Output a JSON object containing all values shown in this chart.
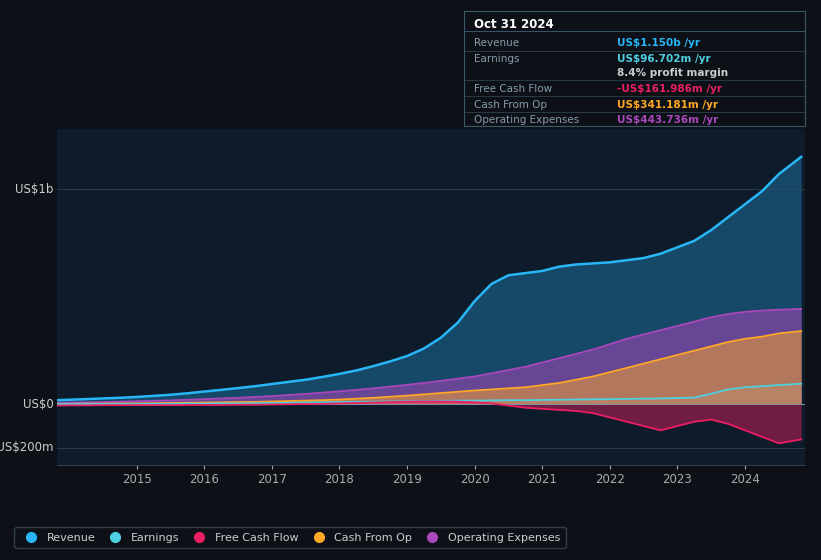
{
  "bg_color": "#0d1117",
  "plot_bg_color": "#0d1b2a",
  "ylabel_top": "US$1b",
  "ylabel_zero": "US$0",
  "ylabel_neg": "-US$200m",
  "ylim": [
    -280000000,
    1280000000
  ],
  "legend_labels": [
    "Revenue",
    "Earnings",
    "Free Cash Flow",
    "Cash From Op",
    "Operating Expenses"
  ],
  "legend_colors": [
    "#29b6f6",
    "#4dd0e1",
    "#e91e63",
    "#ffa726",
    "#ab47bc"
  ],
  "info_title": "Oct 31 2024",
  "info_rows": [
    {
      "label": "Revenue",
      "value": "US$1.150b /yr",
      "color": "#29b6f6"
    },
    {
      "label": "Earnings",
      "value": "US$96.702m /yr",
      "color": "#4dd0e1"
    },
    {
      "label": "",
      "value": "8.4% profit margin",
      "color": "#cccccc"
    },
    {
      "label": "Free Cash Flow",
      "value": "-US$161.986m /yr",
      "color": "#e91e63"
    },
    {
      "label": "Cash From Op",
      "value": "US$341.181m /yr",
      "color": "#ffa726"
    },
    {
      "label": "Operating Expenses",
      "value": "US$443.736m /yr",
      "color": "#ab47bc"
    }
  ],
  "years": [
    2013.83,
    2014.0,
    2014.25,
    2014.5,
    2014.75,
    2015.0,
    2015.25,
    2015.5,
    2015.75,
    2016.0,
    2016.25,
    2016.5,
    2016.75,
    2017.0,
    2017.25,
    2017.5,
    2017.75,
    2018.0,
    2018.25,
    2018.5,
    2018.75,
    2019.0,
    2019.25,
    2019.5,
    2019.75,
    2020.0,
    2020.25,
    2020.5,
    2020.75,
    2021.0,
    2021.25,
    2021.5,
    2021.75,
    2022.0,
    2022.25,
    2022.5,
    2022.75,
    2023.0,
    2023.25,
    2023.5,
    2023.75,
    2024.0,
    2024.25,
    2024.5,
    2024.83
  ],
  "revenue": [
    20000000.0,
    22000000.0,
    25000000.0,
    28000000.0,
    31000000.0,
    35000000.0,
    40000000.0,
    45000000.0,
    52000000.0,
    60000000.0,
    68000000.0,
    76000000.0,
    85000000.0,
    95000000.0,
    105000000.0,
    115000000.0,
    128000000.0,
    142000000.0,
    158000000.0,
    178000000.0,
    200000000.0,
    225000000.0,
    260000000.0,
    310000000.0,
    380000000.0,
    480000000.0,
    560000000.0,
    600000000.0,
    610000000.0,
    620000000.0,
    640000000.0,
    650000000.0,
    655000000.0,
    660000000.0,
    670000000.0,
    680000000.0,
    700000000.0,
    730000000.0,
    760000000.0,
    810000000.0,
    870000000.0,
    930000000.0,
    990000000.0,
    1070000000.0,
    1150000000.0
  ],
  "earnings": [
    2000000.0,
    2000000.0,
    2000000.0,
    2000000.0,
    2000000.0,
    2000000.0,
    3000000.0,
    3000000.0,
    4000000.0,
    4000000.0,
    5000000.0,
    5000000.0,
    6000000.0,
    7000000.0,
    8000000.0,
    9000000.0,
    10000000.0,
    11000000.0,
    12000000.0,
    13000000.0,
    14000000.0,
    15000000.0,
    16000000.0,
    17000000.0,
    18000000.0,
    18000000.0,
    19000000.0,
    20000000.0,
    20000000.0,
    21000000.0,
    22000000.0,
    23000000.0,
    24000000.0,
    25000000.0,
    26000000.0,
    27000000.0,
    28000000.0,
    30000000.0,
    32000000.0,
    50000000.0,
    70000000.0,
    80000000.0,
    85000000.0,
    90000000.0,
    96700000.0
  ],
  "free_cash_flow": [
    -5000000.0,
    -4000000.0,
    -4000000.0,
    -3000000.0,
    -3000000.0,
    -3000000.0,
    -3000000.0,
    -3000000.0,
    -2000000.0,
    -2000000.0,
    -2000000.0,
    -1000000.0,
    -1000000.0,
    0,
    1000000.0,
    2000000.0,
    3000000.0,
    5000000.0,
    7000000.0,
    9000000.0,
    11000000.0,
    13000000.0,
    14000000.0,
    14000000.0,
    13000000.0,
    10000000.0,
    5000000.0,
    -5000000.0,
    -15000000.0,
    -20000000.0,
    -25000000.0,
    -30000000.0,
    -40000000.0,
    -60000000.0,
    -80000000.0,
    -100000000.0,
    -120000000.0,
    -100000000.0,
    -80000000.0,
    -70000000.0,
    -90000000.0,
    -120000000.0,
    -150000000.0,
    -180000000.0,
    -162000000.0
  ],
  "cash_from_op": [
    3000000.0,
    3000000.0,
    4000000.0,
    4000000.0,
    5000000.0,
    5000000.0,
    6000000.0,
    7000000.0,
    8000000.0,
    9000000.0,
    10000000.0,
    11000000.0,
    12000000.0,
    14000000.0,
    16000000.0,
    18000000.0,
    20000000.0,
    23000000.0,
    27000000.0,
    31000000.0,
    36000000.0,
    41000000.0,
    47000000.0,
    53000000.0,
    59000000.0,
    65000000.0,
    70000000.0,
    75000000.0,
    80000000.0,
    90000000.0,
    100000000.0,
    115000000.0,
    130000000.0,
    150000000.0,
    170000000.0,
    190000000.0,
    210000000.0,
    230000000.0,
    250000000.0,
    270000000.0,
    290000000.0,
    305000000.0,
    315000000.0,
    330000000.0,
    341000000.0
  ],
  "operating_expenses": [
    8000000.0,
    9000000.0,
    10000000.0,
    11000000.0,
    13000000.0,
    15000000.0,
    17000000.0,
    19000000.0,
    22000000.0,
    25000000.0,
    28000000.0,
    31000000.0,
    35000000.0,
    39000000.0,
    44000000.0,
    49000000.0,
    55000000.0,
    61000000.0,
    68000000.0,
    75000000.0,
    83000000.0,
    91000000.0,
    100000000.0,
    110000000.0,
    120000000.0,
    130000000.0,
    145000000.0,
    160000000.0,
    175000000.0,
    195000000.0,
    215000000.0,
    235000000.0,
    255000000.0,
    280000000.0,
    305000000.0,
    325000000.0,
    345000000.0,
    365000000.0,
    385000000.0,
    405000000.0,
    420000000.0,
    430000000.0,
    436000000.0,
    440000000.0,
    443700000.0
  ],
  "xtick_years": [
    2015,
    2016,
    2017,
    2018,
    2019,
    2020,
    2021,
    2022,
    2023,
    2024
  ],
  "hlines": [
    1000000000,
    0,
    -200000000
  ]
}
